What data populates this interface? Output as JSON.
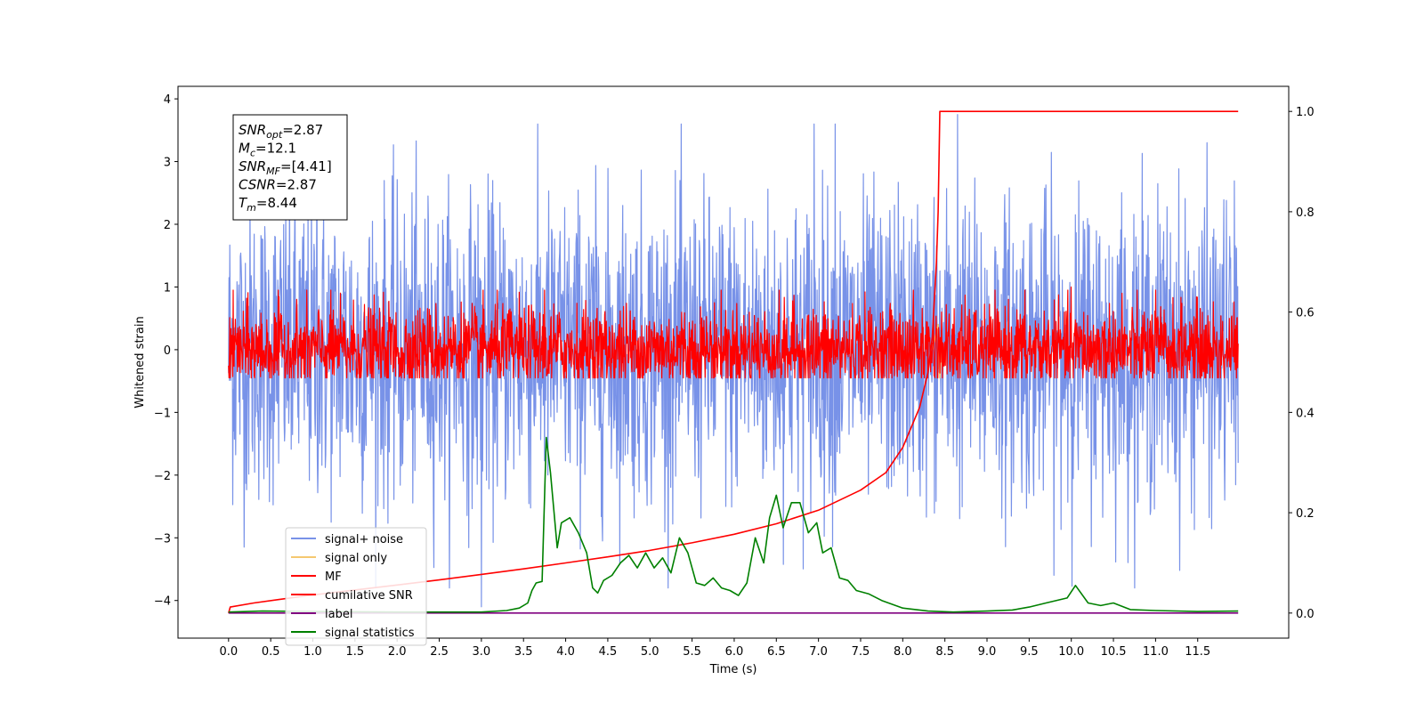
{
  "chart_data": {
    "type": "line",
    "title": "",
    "xlabel": "Time (s)",
    "ylabel": "Whitened strain",
    "xlim": [
      -0.6,
      12.58
    ],
    "ylim_left": [
      -4.6,
      4.2
    ],
    "ylim_right": [
      -0.05,
      1.05
    ],
    "x_ticks": [
      "0.0",
      "0.5",
      "1.0",
      "1.5",
      "2.0",
      "2.5",
      "3.0",
      "3.5",
      "4.0",
      "4.5",
      "5.0",
      "5.5",
      "6.0",
      "6.5",
      "7.0",
      "7.5",
      "8.0",
      "8.5",
      "9.0",
      "9.5",
      "10.0",
      "10.5",
      "11.0",
      "11.5"
    ],
    "y_ticks_left": [
      "4",
      "3",
      "2",
      "1",
      "0",
      "−1",
      "−2",
      "−3",
      "−4"
    ],
    "y_ticks_right": [
      "1.0",
      "0.8",
      "0.6",
      "0.4",
      "0.2",
      "0.0"
    ],
    "grid": false,
    "legend_position": "lower-left",
    "info_box": {
      "lines": [
        {
          "sym": "SNR",
          "sub": "opt",
          "val": "=2.87"
        },
        {
          "sym": "M",
          "sub": "c",
          "val": "=12.1"
        },
        {
          "sym": "SNR",
          "sub": "MF",
          "val": "=[4.41]"
        },
        {
          "sym": "CSNR",
          "sub": "",
          "val": "=2.87"
        },
        {
          "sym": "T",
          "sub": "m",
          "val": "=8.44"
        }
      ]
    },
    "series": [
      {
        "name": "signal+ noise",
        "color": "#7892e8",
        "axis": "left",
        "kind": "noise",
        "t_range": [
          0.0,
          11.98
        ],
        "envelope_lo": [
          -1.2,
          -1.2
        ],
        "envelope_hi": [
          1.2,
          1.2
        ],
        "peak_range": [
          -3.8,
          3.6
        ],
        "spike_points": [
          {
            "t": 3.0,
            "y": -4.1
          },
          {
            "t": 1.05,
            "y": 3.65
          },
          {
            "t": 7.2,
            "y": 3.6
          },
          {
            "t": 8.65,
            "y": 3.75
          },
          {
            "t": 6.95,
            "y": 3.6
          }
        ]
      },
      {
        "name": "signal only",
        "color": "#f5c870",
        "axis": "left",
        "kind": "chirp",
        "points": [
          [
            8.35,
            0.0
          ],
          [
            8.42,
            0.4
          ],
          [
            8.44,
            -0.45
          ],
          [
            8.46,
            0.0
          ]
        ]
      },
      {
        "name": "MF",
        "color": "#ff0000",
        "axis": "left",
        "kind": "noise",
        "t_range": [
          0.0,
          11.98
        ],
        "envelope_lo": [
          -0.35,
          -0.35
        ],
        "envelope_hi": [
          0.35,
          0.35
        ],
        "peak_range": [
          -0.45,
          0.95
        ],
        "spike_points": [
          {
            "t": 3.75,
            "y": 0.95
          },
          {
            "t": 10.0,
            "y": 1.0
          },
          {
            "t": 11.0,
            "y": 0.95
          },
          {
            "t": 10.6,
            "y": 0.9
          }
        ]
      },
      {
        "name": "cumilative SNR",
        "color": "#ff0000",
        "axis": "right",
        "kind": "line",
        "points": [
          [
            0.0,
            0.0
          ],
          [
            0.02,
            0.012
          ],
          [
            0.3,
            0.02
          ],
          [
            0.6,
            0.027
          ],
          [
            1.0,
            0.036
          ],
          [
            1.5,
            0.046
          ],
          [
            2.0,
            0.056
          ],
          [
            2.5,
            0.066
          ],
          [
            3.0,
            0.077
          ],
          [
            3.5,
            0.088
          ],
          [
            4.0,
            0.1
          ],
          [
            4.5,
            0.112
          ],
          [
            5.0,
            0.125
          ],
          [
            5.5,
            0.14
          ],
          [
            6.0,
            0.157
          ],
          [
            6.5,
            0.178
          ],
          [
            7.0,
            0.205
          ],
          [
            7.5,
            0.245
          ],
          [
            7.8,
            0.28
          ],
          [
            8.0,
            0.33
          ],
          [
            8.2,
            0.41
          ],
          [
            8.3,
            0.48
          ],
          [
            8.35,
            0.55
          ],
          [
            8.4,
            0.7
          ],
          [
            8.42,
            0.8
          ],
          [
            8.44,
            1.0
          ],
          [
            11.98,
            1.0
          ]
        ]
      },
      {
        "name": "label",
        "color": "#800080",
        "axis": "right",
        "kind": "line",
        "points": [
          [
            0.0,
            0.0
          ],
          [
            11.98,
            0.0
          ]
        ]
      },
      {
        "name": "signal statistics",
        "color": "#008000",
        "axis": "right",
        "kind": "line",
        "points": [
          [
            0.0,
            0.002
          ],
          [
            0.4,
            0.004
          ],
          [
            1.0,
            0.003
          ],
          [
            2.0,
            0.002
          ],
          [
            3.0,
            0.002
          ],
          [
            3.3,
            0.005
          ],
          [
            3.45,
            0.01
          ],
          [
            3.55,
            0.02
          ],
          [
            3.6,
            0.045
          ],
          [
            3.65,
            0.06
          ],
          [
            3.72,
            0.063
          ],
          [
            3.77,
            0.35
          ],
          [
            3.82,
            0.28
          ],
          [
            3.9,
            0.13
          ],
          [
            3.95,
            0.18
          ],
          [
            4.05,
            0.19
          ],
          [
            4.15,
            0.16
          ],
          [
            4.25,
            0.12
          ],
          [
            4.32,
            0.05
          ],
          [
            4.38,
            0.04
          ],
          [
            4.45,
            0.065
          ],
          [
            4.55,
            0.075
          ],
          [
            4.65,
            0.1
          ],
          [
            4.75,
            0.115
          ],
          [
            4.85,
            0.09
          ],
          [
            4.95,
            0.12
          ],
          [
            5.05,
            0.09
          ],
          [
            5.15,
            0.11
          ],
          [
            5.25,
            0.08
          ],
          [
            5.35,
            0.15
          ],
          [
            5.45,
            0.12
          ],
          [
            5.55,
            0.06
          ],
          [
            5.65,
            0.055
          ],
          [
            5.75,
            0.07
          ],
          [
            5.85,
            0.05
          ],
          [
            5.95,
            0.045
          ],
          [
            6.05,
            0.035
          ],
          [
            6.15,
            0.06
          ],
          [
            6.25,
            0.15
          ],
          [
            6.35,
            0.1
          ],
          [
            6.42,
            0.19
          ],
          [
            6.5,
            0.235
          ],
          [
            6.58,
            0.17
          ],
          [
            6.68,
            0.22
          ],
          [
            6.78,
            0.22
          ],
          [
            6.88,
            0.16
          ],
          [
            6.98,
            0.18
          ],
          [
            7.05,
            0.12
          ],
          [
            7.15,
            0.13
          ],
          [
            7.25,
            0.07
          ],
          [
            7.35,
            0.065
          ],
          [
            7.45,
            0.045
          ],
          [
            7.6,
            0.038
          ],
          [
            7.75,
            0.025
          ],
          [
            8.0,
            0.01
          ],
          [
            8.3,
            0.004
          ],
          [
            8.6,
            0.002
          ],
          [
            9.0,
            0.004
          ],
          [
            9.3,
            0.006
          ],
          [
            9.5,
            0.012
          ],
          [
            9.7,
            0.02
          ],
          [
            9.95,
            0.03
          ],
          [
            10.05,
            0.055
          ],
          [
            10.2,
            0.02
          ],
          [
            10.35,
            0.015
          ],
          [
            10.5,
            0.02
          ],
          [
            10.7,
            0.007
          ],
          [
            11.0,
            0.005
          ],
          [
            11.5,
            0.003
          ],
          [
            11.98,
            0.004
          ]
        ]
      }
    ]
  }
}
